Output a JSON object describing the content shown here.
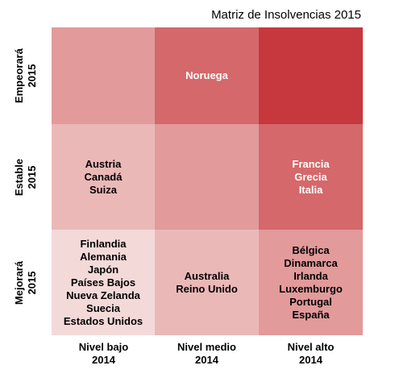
{
  "chart_data": {
    "type": "heatmap",
    "title": "Matriz de Insolvencias 2015",
    "columns": [
      {
        "label": "Nivel bajo",
        "year": "2014"
      },
      {
        "label": "Nivel medio",
        "year": "2014"
      },
      {
        "label": "Nivel alto",
        "year": "2014"
      }
    ],
    "rows": [
      {
        "label": "Empeorará",
        "year": "2015"
      },
      {
        "label": "Estable",
        "year": "2015"
      },
      {
        "label": "Mejorará",
        "year": "2015"
      }
    ],
    "cells": [
      [
        {
          "countries": [],
          "color": "#e29a9a",
          "text_color": "#ffffff"
        },
        {
          "countries": [
            "Noruega"
          ],
          "color": "#d4686a",
          "text_color": "#ffffff"
        },
        {
          "countries": [],
          "color": "#c6383d",
          "text_color": "#ffffff"
        }
      ],
      [
        {
          "countries": [
            "Austria",
            "Canadá",
            "Suiza"
          ],
          "color": "#ebb8b8",
          "text_color": "#000000"
        },
        {
          "countries": [],
          "color": "#e29a9a",
          "text_color": "#000000"
        },
        {
          "countries": [
            "Francia",
            "Grecia",
            "Italia"
          ],
          "color": "#d4686a",
          "text_color": "#ffffff"
        }
      ],
      [
        {
          "countries": [
            "Finlandia",
            "Alemania",
            "Japón",
            "Países Bajos",
            "Nueva Zelanda",
            "Suecia",
            "Estados Unidos"
          ],
          "color": "#f4d9d9",
          "text_color": "#000000"
        },
        {
          "countries": [
            "Australia",
            "Reino Unido"
          ],
          "color": "#ebb8b8",
          "text_color": "#000000"
        },
        {
          "countries": [
            "Bélgica",
            "Dinamarca",
            "Irlanda",
            "Luxemburgo",
            "Portugal",
            "España"
          ],
          "color": "#e29a9a",
          "text_color": "#000000"
        }
      ]
    ]
  }
}
